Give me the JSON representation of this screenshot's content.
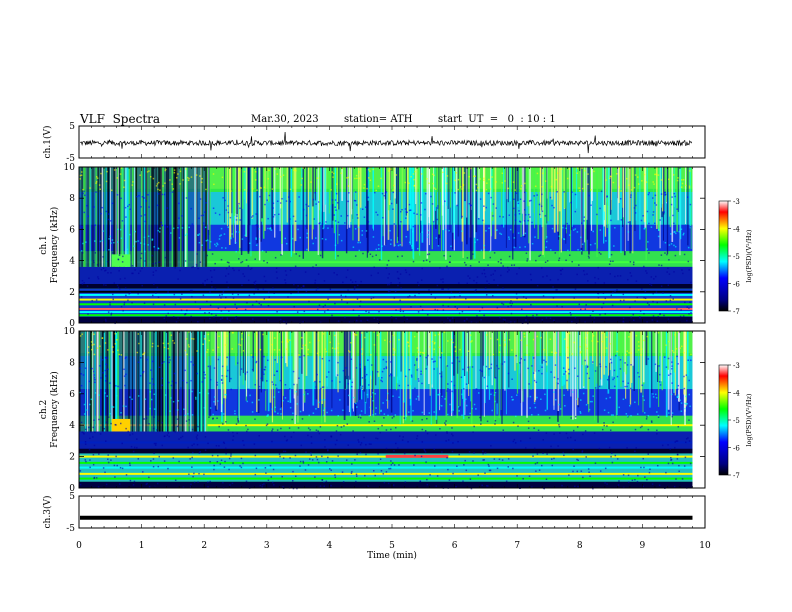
{
  "header": {
    "title": "VLF  Spectra",
    "date": "Mar.30, 2023",
    "station": "station= ATH",
    "start": "start  UT  =   0  : 10 : 1"
  },
  "chart_data": [
    {
      "type": "line",
      "ylabel": "ch.1(V)",
      "ylim": [
        -5,
        5
      ],
      "yticks": [
        "5",
        "-5"
      ],
      "description_level": -0.3
    },
    {
      "type": "heatmap",
      "ylabel": "ch.1\nFrequency (kHz)",
      "ylabel_top": "ch.1",
      "ylabel_bottom": "Frequency (kHz)",
      "ylim": [
        0,
        10
      ],
      "yticks": [
        "0",
        "2",
        "4",
        "6",
        "8",
        "10"
      ],
      "colorbar": {
        "label": "log(PSD)(V²/Hz)",
        "range": [
          -7,
          -3
        ],
        "ticks": [
          "-3",
          "-4",
          "-5",
          "-6",
          "-7"
        ]
      }
    },
    {
      "type": "heatmap",
      "ylabel_top": "ch.2",
      "ylabel_bottom": "Frequency (kHz)",
      "ylim": [
        0,
        10
      ],
      "yticks": [
        "0",
        "2",
        "4",
        "6",
        "8",
        "10"
      ],
      "colorbar": {
        "label": "log(PSD)(V²/Hz)",
        "range": [
          -7,
          -3
        ],
        "ticks": [
          "-3",
          "-4",
          "-5",
          "-6",
          "-7"
        ]
      }
    },
    {
      "type": "line",
      "ylabel": "ch.3(V)",
      "ylim": [
        -5,
        5
      ],
      "yticks": [
        "5",
        "-5"
      ],
      "level": -1.8
    }
  ],
  "xaxis": {
    "label": "Time  (min)",
    "xlim": [
      0,
      10
    ],
    "ticks": [
      "0",
      "1",
      "2",
      "3",
      "4",
      "5",
      "6",
      "7",
      "8",
      "9",
      "10"
    ],
    "data_end": 9.8
  }
}
